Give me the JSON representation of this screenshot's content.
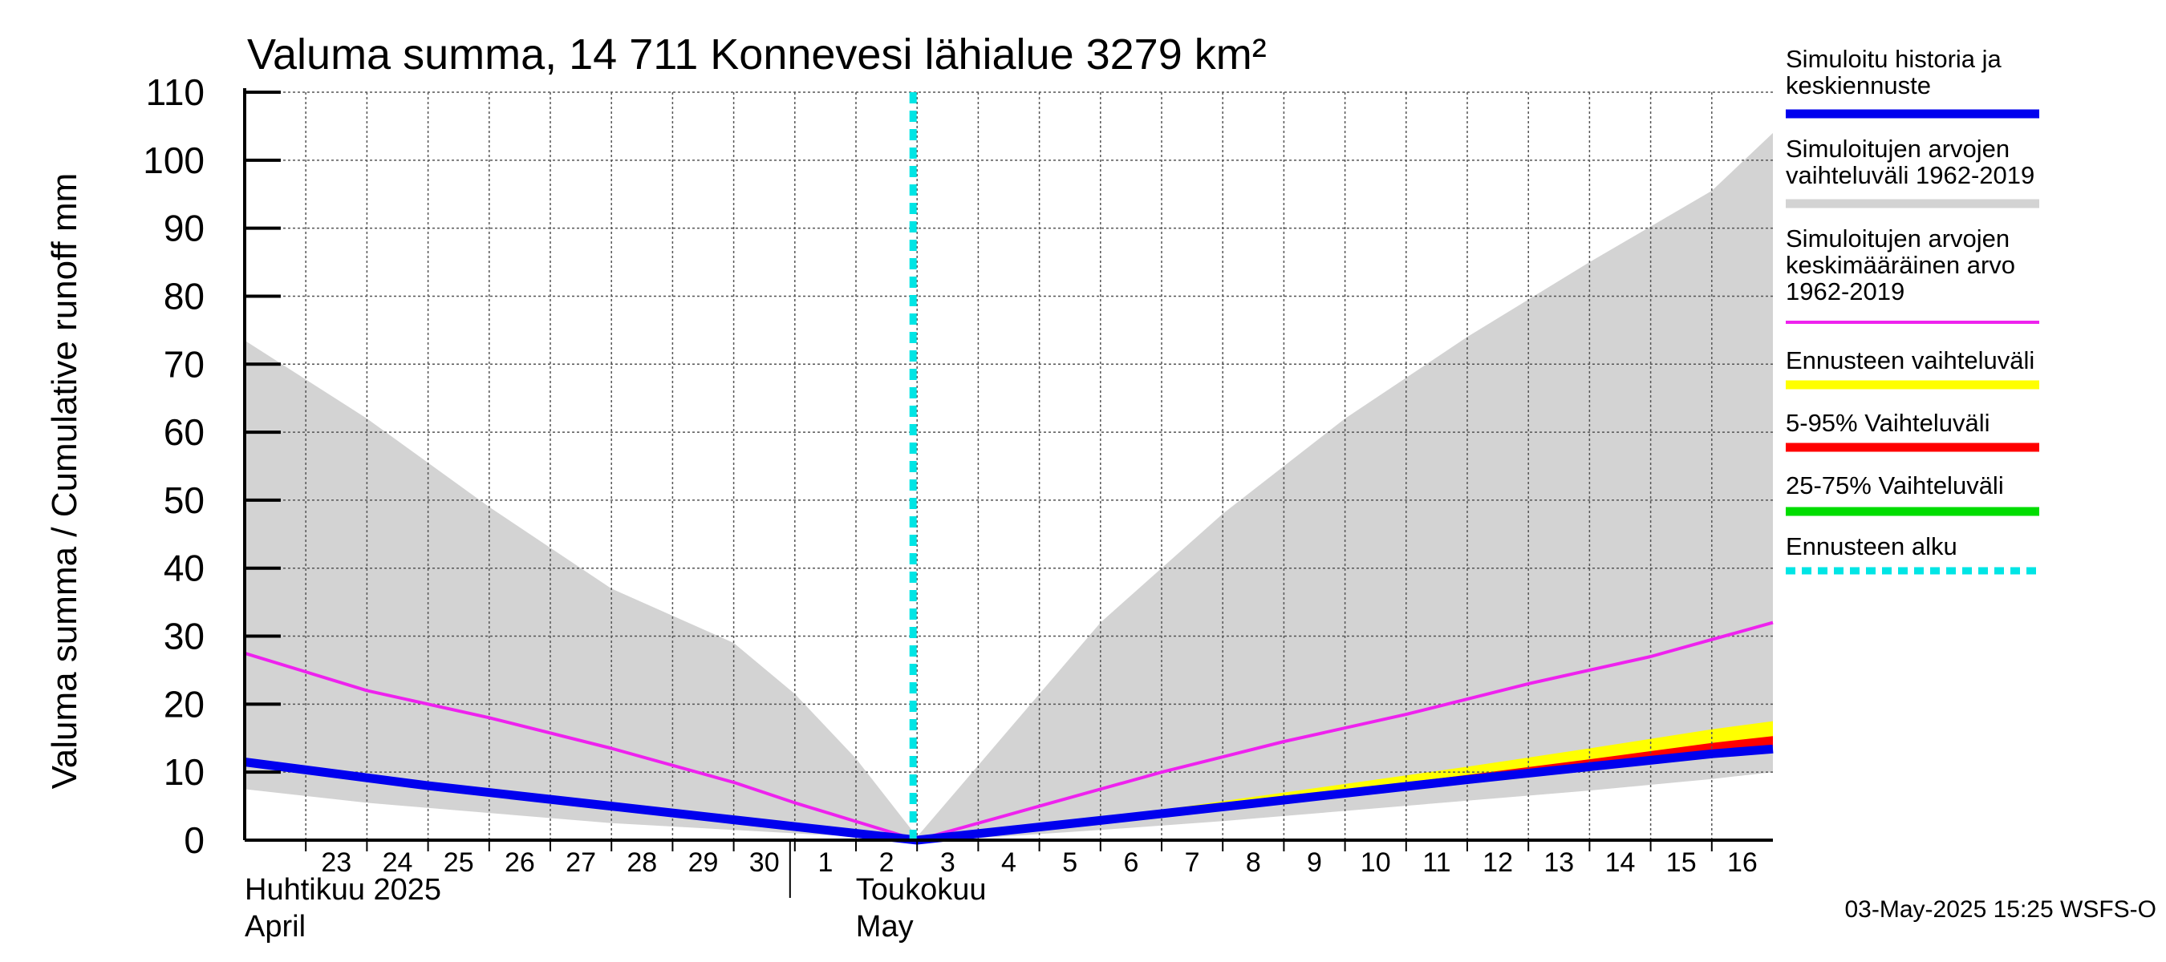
{
  "chart_data": {
    "type": "area",
    "title": "Valuma summa, 14 711 Konnevesi lähialue 3279 km²",
    "ylabel": "Valuma summa / Cumulative runoff     mm",
    "ylim": [
      0,
      110
    ],
    "yticks": [
      0,
      10,
      20,
      30,
      40,
      50,
      60,
      70,
      80,
      90,
      100,
      110
    ],
    "x_start": "2025-04-22",
    "x_end": "2025-05-16",
    "day_labels": [
      {
        "date": "2025-04-23",
        "label": "23"
      },
      {
        "date": "2025-04-24",
        "label": "24"
      },
      {
        "date": "2025-04-25",
        "label": "25"
      },
      {
        "date": "2025-04-26",
        "label": "26"
      },
      {
        "date": "2025-04-27",
        "label": "27"
      },
      {
        "date": "2025-04-28",
        "label": "28"
      },
      {
        "date": "2025-04-29",
        "label": "29"
      },
      {
        "date": "2025-04-30",
        "label": "30"
      },
      {
        "date": "2025-05-01",
        "label": "1"
      },
      {
        "date": "2025-05-02",
        "label": "2"
      },
      {
        "date": "2025-05-03",
        "label": "3"
      },
      {
        "date": "2025-05-04",
        "label": "4"
      },
      {
        "date": "2025-05-05",
        "label": "5"
      },
      {
        "date": "2025-05-06",
        "label": "6"
      },
      {
        "date": "2025-05-07",
        "label": "7"
      },
      {
        "date": "2025-05-08",
        "label": "8"
      },
      {
        "date": "2025-05-09",
        "label": "9"
      },
      {
        "date": "2025-05-10",
        "label": "10"
      },
      {
        "date": "2025-05-11",
        "label": "11"
      },
      {
        "date": "2025-05-12",
        "label": "12"
      },
      {
        "date": "2025-05-13",
        "label": "13"
      },
      {
        "date": "2025-05-14",
        "label": "14"
      },
      {
        "date": "2025-05-15",
        "label": "15"
      },
      {
        "date": "2025-05-16",
        "label": "16"
      }
    ],
    "months": [
      {
        "date": "2025-04-22",
        "line1": "Huhtikuu  2025",
        "line2": "April"
      },
      {
        "date": "2025-05-01",
        "line1": "Toukokuu",
        "line2": "May"
      }
    ],
    "month_boundary": "2025-05-01",
    "forecast_start": "2025-05-03",
    "series": [
      {
        "name": "Simuloitujen arvojen vaihteluväli 1962-2019",
        "kind": "band",
        "color": "#d3d3d3",
        "points": [
          {
            "x": "2025-04-22",
            "lo": 7.5,
            "hi": 73.5
          },
          {
            "x": "2025-04-24",
            "lo": 5.5,
            "hi": 62
          },
          {
            "x": "2025-04-26",
            "lo": 4,
            "hi": 49
          },
          {
            "x": "2025-04-28",
            "lo": 2.5,
            "hi": 37
          },
          {
            "x": "2025-04-30",
            "lo": 1.5,
            "hi": 29
          },
          {
            "x": "2025-05-01",
            "lo": 1,
            "hi": 21.5
          },
          {
            "x": "2025-05-02",
            "lo": 0.5,
            "hi": 12
          },
          {
            "x": "2025-05-03",
            "lo": 0,
            "hi": 0.5
          },
          {
            "x": "2025-05-04",
            "lo": 0.3,
            "hi": 11
          },
          {
            "x": "2025-05-06",
            "lo": 1.5,
            "hi": 32
          },
          {
            "x": "2025-05-08",
            "lo": 2.8,
            "hi": 48
          },
          {
            "x": "2025-05-10",
            "lo": 4.3,
            "hi": 62
          },
          {
            "x": "2025-05-12",
            "lo": 5.8,
            "hi": 74
          },
          {
            "x": "2025-05-14",
            "lo": 7.3,
            "hi": 85
          },
          {
            "x": "2025-05-16",
            "lo": 9.0,
            "hi": 95.5
          },
          {
            "x": "2025-05-17",
            "lo": 10.0,
            "hi": 104
          }
        ]
      },
      {
        "name": "Ennusteen vaihteluväli",
        "kind": "band",
        "color": "#ffff00",
        "points": [
          {
            "x": "2025-05-03",
            "lo": 0,
            "hi": 0
          },
          {
            "x": "2025-05-06",
            "lo": 2.8,
            "hi": 3.2
          },
          {
            "x": "2025-05-09",
            "lo": 5.8,
            "hi": 7
          },
          {
            "x": "2025-05-12",
            "lo": 8.7,
            "hi": 10.8
          },
          {
            "x": "2025-05-14",
            "lo": 10.5,
            "hi": 13.5
          },
          {
            "x": "2025-05-16",
            "lo": 12.3,
            "hi": 16.3
          },
          {
            "x": "2025-05-17",
            "lo": 13.0,
            "hi": 17.5
          }
        ]
      },
      {
        "name": "5-95% Vaihteluväli",
        "kind": "band",
        "color": "#ff0000",
        "points": [
          {
            "x": "2025-05-03",
            "lo": 0,
            "hi": 0
          },
          {
            "x": "2025-05-06",
            "lo": 2.8,
            "hi": 3.0
          },
          {
            "x": "2025-05-09",
            "lo": 5.8,
            "hi": 6.3
          },
          {
            "x": "2025-05-12",
            "lo": 8.7,
            "hi": 9.6
          },
          {
            "x": "2025-05-14",
            "lo": 10.5,
            "hi": 11.9
          },
          {
            "x": "2025-05-16",
            "lo": 12.3,
            "hi": 14.3
          },
          {
            "x": "2025-05-17",
            "lo": 13.0,
            "hi": 15.3
          }
        ]
      },
      {
        "name": "25-75% Vaihteluväli",
        "kind": "band",
        "color": "#00dd00",
        "points": [
          {
            "x": "2025-05-03",
            "lo": 0,
            "hi": 0
          },
          {
            "x": "2025-05-06",
            "lo": 2.85,
            "hi": 2.95
          },
          {
            "x": "2025-05-09",
            "lo": 5.85,
            "hi": 6.0
          },
          {
            "x": "2025-05-12",
            "lo": 8.8,
            "hi": 9.0
          },
          {
            "x": "2025-05-14",
            "lo": 10.7,
            "hi": 11.0
          },
          {
            "x": "2025-05-16",
            "lo": 12.5,
            "hi": 12.9
          },
          {
            "x": "2025-05-17",
            "lo": 13.2,
            "hi": 13.7
          }
        ]
      },
      {
        "name": "Simuloitujen arvojen keskimääräinen arvo 1962-2019",
        "kind": "line",
        "color": "#ee22ee",
        "points": [
          {
            "x": "2025-04-22",
            "y": 27.5
          },
          {
            "x": "2025-04-24",
            "y": 22
          },
          {
            "x": "2025-04-26",
            "y": 18
          },
          {
            "x": "2025-04-28",
            "y": 13.5
          },
          {
            "x": "2025-04-30",
            "y": 8.5
          },
          {
            "x": "2025-05-01",
            "y": 5.5
          },
          {
            "x": "2025-05-03",
            "y": 0
          },
          {
            "x": "2025-05-05",
            "y": 5
          },
          {
            "x": "2025-05-07",
            "y": 10
          },
          {
            "x": "2025-05-09",
            "y": 14.5
          },
          {
            "x": "2025-05-11",
            "y": 18.5
          },
          {
            "x": "2025-05-13",
            "y": 23
          },
          {
            "x": "2025-05-15",
            "y": 27
          },
          {
            "x": "2025-05-17",
            "y": 32
          }
        ]
      },
      {
        "name": "Simuloitu historia ja keskiennuste",
        "kind": "line",
        "color": "#0000ee",
        "points": [
          {
            "x": "2025-04-22",
            "y": 11.5
          },
          {
            "x": "2025-04-25",
            "y": 8
          },
          {
            "x": "2025-04-28",
            "y": 5
          },
          {
            "x": "2025-04-30",
            "y": 3
          },
          {
            "x": "2025-05-03",
            "y": 0
          },
          {
            "x": "2025-05-06",
            "y": 2.9
          },
          {
            "x": "2025-05-09",
            "y": 5.9
          },
          {
            "x": "2025-05-12",
            "y": 8.9
          },
          {
            "x": "2025-05-14",
            "y": 10.8
          },
          {
            "x": "2025-05-16",
            "y": 12.7
          },
          {
            "x": "2025-05-17",
            "y": 13.4
          }
        ]
      }
    ],
    "legend": [
      {
        "label": "Simuloitu historia ja keskiennuste",
        "color": "#0000ee",
        "style": "solid"
      },
      {
        "label": "Simuloitujen arvojen vaihteluväli 1962-2019",
        "color": "#d3d3d3",
        "style": "solid"
      },
      {
        "label": "Simuloitujen arvojen keskimääräinen arvo 1962-2019",
        "color": "#ee22ee",
        "style": "solid"
      },
      {
        "label": "Ennusteen vaihteluväli",
        "color": "#ffff00",
        "style": "solid"
      },
      {
        "label": "5-95% Vaihteluväli",
        "color": "#ff0000",
        "style": "solid"
      },
      {
        "label": "25-75% Vaihteluväli",
        "color": "#00dd00",
        "style": "solid"
      },
      {
        "label": "Ennusteen alku",
        "color": "#00e5e5",
        "style": "dashed"
      }
    ],
    "legend_position": "right",
    "grid": true,
    "forecast_line_color": "#00e5e5"
  },
  "legend_lines": {
    "l0": [
      "Simuloitu historia ja",
      "keskiennuste"
    ],
    "l1": [
      "Simuloitujen arvojen",
      "vaihteluväli 1962-2019"
    ],
    "l2": [
      "Simuloitujen arvojen",
      "keskimääräinen arvo",
      "   1962-2019"
    ],
    "l3": [
      "Ennusteen vaihteluväli"
    ],
    "l4": [
      "5-95% Vaihteluväli"
    ],
    "l5": [
      "25-75% Vaihteluväli"
    ],
    "l6": [
      "Ennusteen alku"
    ]
  },
  "timestamp": "03-May-2025 15:25 WSFS-O"
}
